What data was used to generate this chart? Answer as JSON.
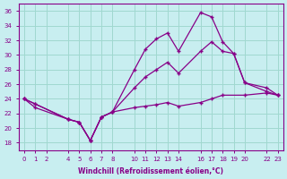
{
  "xlabel": "Windchill (Refroidissement éolien,°C)",
  "background_color": "#c8eef0",
  "grid_color": "#a0d8d0",
  "line_color": "#880088",
  "x_ticks": [
    0,
    1,
    2,
    4,
    5,
    6,
    7,
    8,
    10,
    11,
    12,
    13,
    14,
    16,
    17,
    18,
    19,
    20,
    22,
    23
  ],
  "ylim": [
    17,
    37
  ],
  "xlim": [
    -0.5,
    23.5
  ],
  "y_ticks": [
    18,
    20,
    22,
    24,
    26,
    28,
    30,
    32,
    34,
    36
  ],
  "series1_x": [
    0,
    1,
    4,
    5,
    6,
    7,
    8,
    10,
    11,
    12,
    13,
    14,
    16,
    17,
    18,
    19,
    20,
    22,
    23
  ],
  "series1_y": [
    24.0,
    23.3,
    21.2,
    20.8,
    18.3,
    21.5,
    22.2,
    28.0,
    30.8,
    32.2,
    33.0,
    30.5,
    35.8,
    35.2,
    31.8,
    30.2,
    26.2,
    25.0,
    24.5
  ],
  "series2_x": [
    0,
    1,
    4,
    5,
    6,
    7,
    8,
    10,
    11,
    12,
    13,
    14,
    16,
    17,
    18,
    19,
    20,
    22,
    23
  ],
  "series2_y": [
    24.0,
    23.3,
    21.2,
    20.8,
    18.3,
    21.5,
    22.2,
    25.5,
    27.0,
    28.0,
    29.0,
    27.5,
    30.5,
    31.8,
    30.5,
    30.2,
    26.2,
    25.5,
    24.5
  ],
  "series3_x": [
    0,
    1,
    4,
    5,
    6,
    7,
    8,
    10,
    11,
    12,
    13,
    14,
    16,
    17,
    18,
    20,
    22,
    23
  ],
  "series3_y": [
    24.0,
    22.8,
    21.2,
    20.8,
    18.3,
    21.5,
    22.2,
    22.8,
    23.0,
    23.2,
    23.5,
    23.0,
    23.5,
    24.0,
    24.5,
    24.5,
    24.8,
    24.5
  ]
}
